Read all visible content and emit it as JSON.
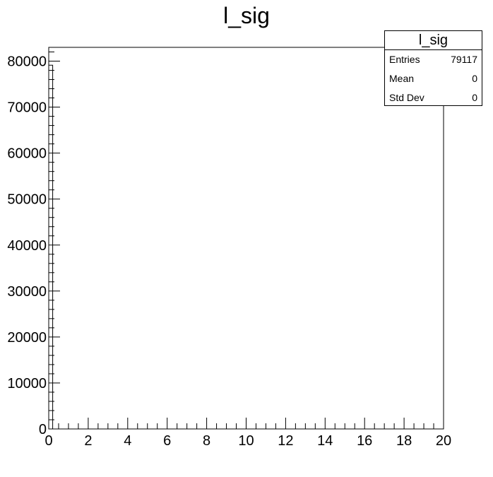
{
  "chart_data": {
    "type": "bar",
    "title": "l_sig",
    "xlabel": "",
    "ylabel": "",
    "xlim": [
      0,
      20
    ],
    "ylim": [
      0,
      83000
    ],
    "x_ticks": [
      "0",
      "2",
      "4",
      "6",
      "8",
      "10",
      "12",
      "14",
      "16",
      "18",
      "20"
    ],
    "y_ticks": [
      "0",
      "10000",
      "20000",
      "30000",
      "40000",
      "50000",
      "60000",
      "70000",
      "80000"
    ],
    "bins": [
      {
        "x_low": 0,
        "x_high": 0.2,
        "value": 79117
      }
    ],
    "grid": false,
    "legend": "none",
    "colors": {
      "line": "#000000",
      "fill": "none"
    }
  },
  "stats": {
    "title": "l_sig",
    "rows": [
      {
        "label": "Entries",
        "value": "79117"
      },
      {
        "label": "Mean",
        "value": "0"
      },
      {
        "label": "Std Dev",
        "value": "0"
      }
    ]
  }
}
